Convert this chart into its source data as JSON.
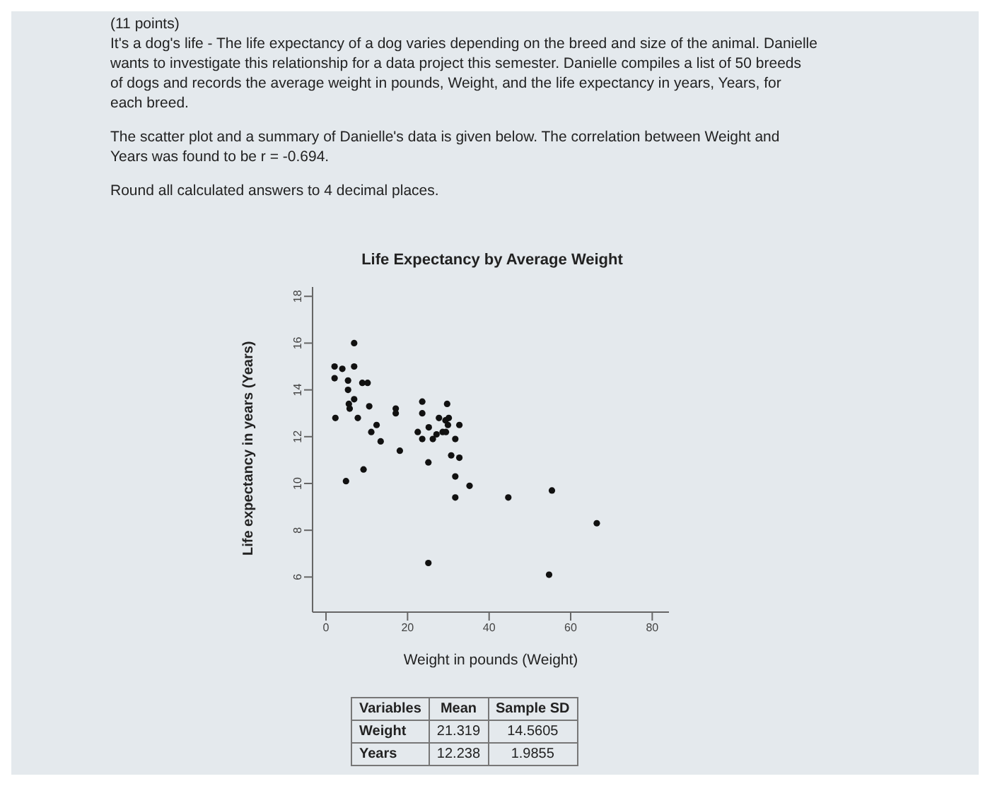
{
  "chart_data": {
    "type": "scatter",
    "title": "Life Expectancy by Average Weight",
    "xlabel": "Weight in pounds (Weight)",
    "ylabel": "Life expectancy in years (Years)",
    "annotations": [
      "(11 points)",
      "It's a dog's life - The life expectancy of a dog varies depending on the breed and size of the animal. Danielle wants to investigate this relationship for a data project this semester. Danielle compiles a list of 50 breeds of dogs and records the average weight in pounds, Weight, and the life expectancy in years, Years, for each breed.",
      "The scatter plot and a summary of Danielle's data is given below. The correlation between Weight and Years was found to be r = -0.694.",
      "Round all calculated answers to 4 decimal places.",
      "Variables",
      "Mean",
      "Sample SD",
      "Weight",
      "21.319",
      "14.5605",
      "Years",
      "12.238",
      "1.9855"
    ],
    "x": [
      2.1,
      2.1,
      2.3,
      4.0,
      5.4,
      5.4,
      5.6,
      5.8,
      4.9,
      6.9,
      6.9,
      6.9,
      7.8,
      8.9,
      10.2,
      9.2,
      10.6,
      11.1,
      12.4,
      13.4,
      17.1,
      17.1,
      18.1,
      22.5,
      23.6,
      23.6,
      23.6,
      25.2,
      25.1,
      25.1,
      26.2,
      27.1,
      27.7,
      28.6,
      29.4,
      29.7,
      29.3,
      29.9,
      30.1,
      30.7,
      31.7,
      31.7,
      31.7,
      32.7,
      32.7,
      35.2,
      44.7,
      55.4,
      54.7,
      66.4
    ],
    "values": [
      15.0,
      14.5,
      12.8,
      14.9,
      14.4,
      14.0,
      13.4,
      13.2,
      10.1,
      16.0,
      15.0,
      13.6,
      12.8,
      14.3,
      14.3,
      10.6,
      13.3,
      12.2,
      12.5,
      11.8,
      13.2,
      13.0,
      11.4,
      12.2,
      13.5,
      13.0,
      11.9,
      12.4,
      10.9,
      6.6,
      11.9,
      12.1,
      12.8,
      12.2,
      12.2,
      13.4,
      12.7,
      12.5,
      12.8,
      11.2,
      11.9,
      10.3,
      9.4,
      12.5,
      11.1,
      9.9,
      9.4,
      9.7,
      6.1,
      8.3
    ],
    "color": "#111111",
    "marker": "circle",
    "xlim": [
      -3.3,
      84.1
    ],
    "xticks": [
      0,
      20,
      40,
      60,
      80
    ],
    "ylim": [
      4.5,
      18.4
    ],
    "yticks": [
      6,
      8,
      10,
      12,
      14,
      16,
      18
    ],
    "grid": false,
    "legend": false
  }
}
